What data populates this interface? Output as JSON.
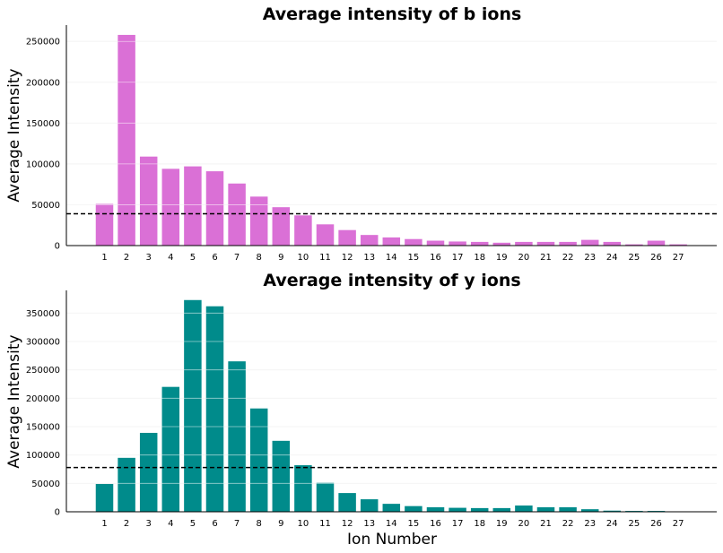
{
  "chart_data": [
    {
      "type": "bar",
      "title": "Average intensity of b ions",
      "xlabel": "",
      "ylabel": "Average Intensity",
      "categories": [
        "1",
        "2",
        "3",
        "4",
        "5",
        "6",
        "7",
        "8",
        "9",
        "10",
        "11",
        "12",
        "13",
        "14",
        "15",
        "16",
        "17",
        "18",
        "19",
        "20",
        "21",
        "22",
        "23",
        "24",
        "25",
        "26",
        "27"
      ],
      "values": [
        51000,
        258000,
        109000,
        94000,
        97000,
        91000,
        76000,
        60000,
        47000,
        37000,
        26000,
        19000,
        13000,
        10000,
        8000,
        6000,
        5000,
        4500,
        3500,
        4500,
        4500,
        4500,
        7000,
        4500,
        1500,
        6000,
        1500
      ],
      "color": "#da70d6",
      "reference_line": 39000,
      "ylim": [
        0,
        270000
      ],
      "yticks": [
        0,
        50000,
        100000,
        150000,
        200000,
        250000
      ],
      "grid": "horizontal"
    },
    {
      "type": "bar",
      "title": "Average intensity of y ions",
      "xlabel": "Ion Number",
      "ylabel": "Average Intensity",
      "categories": [
        "1",
        "2",
        "3",
        "4",
        "5",
        "6",
        "7",
        "8",
        "9",
        "10",
        "11",
        "12",
        "13",
        "14",
        "15",
        "16",
        "17",
        "18",
        "19",
        "20",
        "21",
        "22",
        "23",
        "24",
        "25",
        "26",
        "27"
      ],
      "values": [
        49000,
        95000,
        139000,
        220000,
        373000,
        362000,
        265000,
        182000,
        125000,
        82000,
        51000,
        33000,
        22000,
        14000,
        10000,
        8000,
        7000,
        6500,
        6500,
        11000,
        8000,
        8000,
        4500,
        2000,
        1500,
        1500,
        0
      ],
      "color": "#008b8b",
      "reference_line": 78000,
      "ylim": [
        0,
        390000
      ],
      "yticks": [
        0,
        50000,
        100000,
        150000,
        200000,
        250000,
        300000,
        350000
      ],
      "grid": "horizontal"
    }
  ]
}
